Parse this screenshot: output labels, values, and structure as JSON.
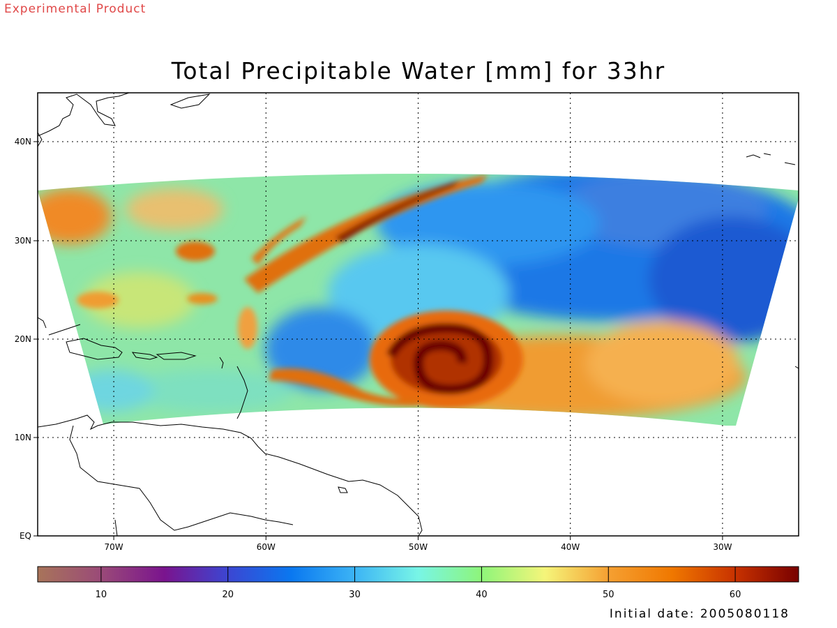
{
  "experimental_label": "Experimental Product",
  "title": "Total Precipitable Water [mm] for 33hr",
  "initial_date": "Initial date: 2005080118",
  "map": {
    "x_ticks": [
      {
        "lon": -70,
        "label": "70W"
      },
      {
        "lon": -60,
        "label": "60W"
      },
      {
        "lon": -50,
        "label": "50W"
      },
      {
        "lon": -40,
        "label": "40W"
      },
      {
        "lon": -30,
        "label": "30W"
      }
    ],
    "y_ticks": [
      {
        "lat": 0,
        "label": "EQ"
      },
      {
        "lat": 10,
        "label": "10N"
      },
      {
        "lat": 20,
        "label": "20N"
      },
      {
        "lat": 30,
        "label": "30N"
      },
      {
        "lat": 40,
        "label": "40N"
      }
    ],
    "lon_range": [
      -75,
      -25
    ],
    "lat_range": [
      0,
      45
    ],
    "grid": true
  },
  "colorbar": {
    "range": [
      5,
      65
    ],
    "tick_labels": [
      {
        "value": 10,
        "label": "10"
      },
      {
        "value": 20,
        "label": "20"
      },
      {
        "value": 30,
        "label": "30"
      },
      {
        "value": 40,
        "label": "40"
      },
      {
        "value": 50,
        "label": "50"
      },
      {
        "value": 60,
        "label": "60"
      }
    ],
    "color_stops": [
      "#a8745a",
      "#9a4a78",
      "#7a148e",
      "#3c46d2",
      "#0a78f0",
      "#3cb4f5",
      "#78f5e6",
      "#8ef57a",
      "#f5f57a",
      "#f5a032",
      "#f07800",
      "#c83200",
      "#780000"
    ]
  }
}
